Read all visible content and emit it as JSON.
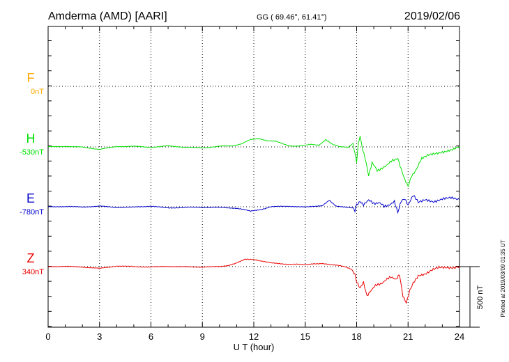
{
  "header": {
    "station": "Amderma (AMD)  [AARI]",
    "coords": "GG ( 69.46°,  61.41°)",
    "date": "2019/02/06"
  },
  "footer": {
    "plotted": "Plotted at 2019/03/09 01:35 UT",
    "scale": "500 nT"
  },
  "chart_data": {
    "type": "line",
    "xlabel": "U T (hour)",
    "xlim": [
      0,
      24
    ],
    "xticks": [
      "0",
      "3",
      "6",
      "9",
      "12",
      "15",
      "18",
      "21",
      "24"
    ],
    "scale_bar_nT": 500,
    "series": [
      {
        "name": "F",
        "baseline_label": "0nT",
        "color": "#ffaa00",
        "x": [],
        "y": []
      },
      {
        "name": "H",
        "baseline_label": "-530nT",
        "color": "#00e000",
        "x": [
          0,
          1,
          2,
          3,
          4,
          5,
          6,
          7,
          8,
          9,
          10,
          10.8,
          11.3,
          11.8,
          12.3,
          12.8,
          13.3,
          14,
          14.6,
          15.2,
          15.8,
          16.2,
          16.6,
          17,
          17.5,
          17.8,
          17.9,
          18.0,
          18.1,
          18.2,
          18.35,
          18.5,
          18.7,
          18.9,
          19.2,
          19.5,
          19.8,
          20.1,
          20.4,
          20.6,
          20.8,
          21.0,
          21.2,
          21.5,
          21.8,
          22.2,
          22.6,
          23.0,
          23.4,
          23.8,
          24.0
        ],
        "y": [
          0,
          5,
          -2,
          -20,
          3,
          5,
          -4,
          8,
          -3,
          -8,
          5,
          10,
          25,
          60,
          70,
          50,
          45,
          10,
          5,
          20,
          15,
          60,
          20,
          0,
          -3,
          30,
          -60,
          -120,
          25,
          95,
          -20,
          -100,
          -240,
          -130,
          -200,
          -170,
          -150,
          -110,
          -90,
          -180,
          -260,
          -320,
          -240,
          -180,
          -100,
          -70,
          -55,
          -40,
          -25,
          -10,
          5
        ]
      },
      {
        "name": "E",
        "baseline_label": "-780nT",
        "color": "#0000cc",
        "x": [
          0,
          1,
          2,
          3,
          4,
          5,
          6,
          7,
          8,
          9,
          10,
          11,
          11.8,
          12.5,
          13,
          14,
          15,
          16,
          16.4,
          16.8,
          17.3,
          17.8,
          17.9,
          18.0,
          18.2,
          18.4,
          18.7,
          19.0,
          19.3,
          19.6,
          19.9,
          20.2,
          20.4,
          20.6,
          20.8,
          21.0,
          21.3,
          21.6,
          22.0,
          22.5,
          23.0,
          23.5,
          24.0
        ],
        "y": [
          0,
          2,
          -2,
          5,
          -5,
          -3,
          5,
          -10,
          -5,
          -4,
          -5,
          -12,
          -35,
          -20,
          0,
          5,
          -3,
          10,
          55,
          5,
          0,
          -10,
          -30,
          15,
          45,
          20,
          50,
          30,
          35,
          0,
          20,
          40,
          -50,
          50,
          70,
          20,
          90,
          40,
          55,
          45,
          65,
          70,
          60
        ]
      },
      {
        "name": "Z",
        "baseline_label": "340nT",
        "color": "#ee0000",
        "x": [
          0,
          1,
          2,
          3,
          4,
          5,
          6,
          7,
          8,
          9,
          10,
          10.5,
          11,
          11.5,
          12,
          12.5,
          13,
          13.5,
          14,
          14.5,
          15,
          15.5,
          16,
          16.5,
          17,
          17.4,
          17.7,
          17.9,
          18.0,
          18.2,
          18.4,
          18.6,
          18.8,
          19.1,
          19.4,
          19.7,
          20.0,
          20.3,
          20.5,
          20.7,
          20.9,
          21.1,
          21.3,
          21.6,
          22.0,
          22.4,
          22.8,
          23.2,
          23.6,
          24.0
        ],
        "y": [
          0,
          2,
          -3,
          -15,
          5,
          0,
          -3,
          2,
          -2,
          -3,
          0,
          10,
          30,
          60,
          60,
          45,
          30,
          25,
          20,
          20,
          15,
          25,
          25,
          15,
          10,
          -5,
          -20,
          -60,
          -130,
          -180,
          -130,
          -240,
          -200,
          -160,
          -140,
          -110,
          -90,
          -100,
          -60,
          -240,
          -300,
          -200,
          -140,
          -70,
          -60,
          -30,
          -10,
          -10,
          -8,
          5
        ]
      }
    ]
  }
}
